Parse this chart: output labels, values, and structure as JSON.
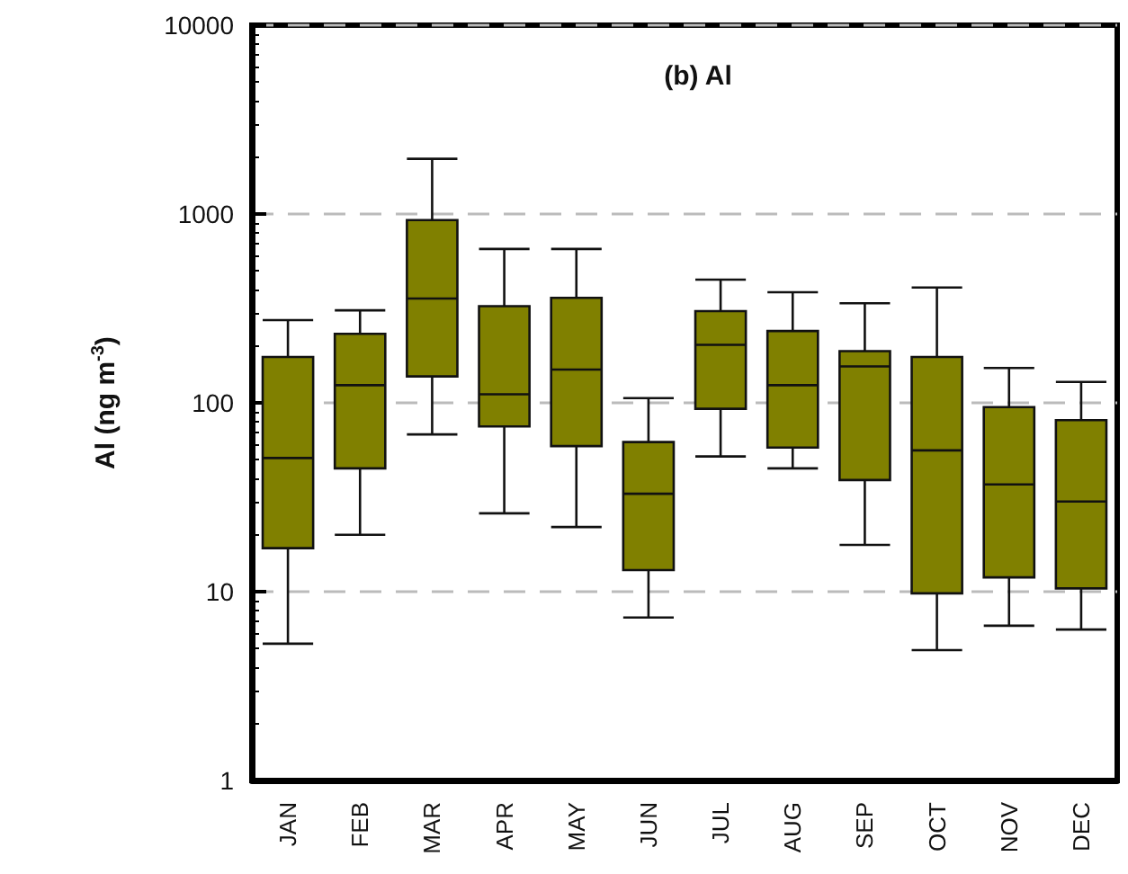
{
  "chart_data": {
    "type": "box",
    "title": "(b) Al",
    "ylabel": "Al (ng m$^{-3}$)",
    "categories": [
      "JAN",
      "FEB",
      "MAR",
      "APR",
      "MAY",
      "JUN",
      "JUL",
      "AUG",
      "SEP",
      "OCT",
      "NOV",
      "DEC"
    ],
    "color": "#808000",
    "log": "y",
    "ylim": [
      1,
      10000
    ],
    "yticks": [
      1,
      10,
      100,
      1000,
      10000
    ],
    "grid": "y",
    "boxes": [
      {
        "low": 5.3,
        "q1": 17,
        "median": 51,
        "q3": 175,
        "high": 274
      },
      {
        "low": 20,
        "q1": 45,
        "median": 124,
        "q3": 232,
        "high": 309
      },
      {
        "low": 68,
        "q1": 138,
        "median": 357,
        "q3": 929,
        "high": 1960
      },
      {
        "low": 26,
        "q1": 75,
        "median": 111,
        "q3": 325,
        "high": 653
      },
      {
        "low": 22,
        "q1": 59,
        "median": 150,
        "q3": 360,
        "high": 653
      },
      {
        "low": 7.3,
        "q1": 13,
        "median": 33,
        "q3": 62,
        "high": 106
      },
      {
        "low": 52,
        "q1": 93,
        "median": 203,
        "q3": 306,
        "high": 449
      },
      {
        "low": 45,
        "q1": 58,
        "median": 124,
        "q3": 240,
        "high": 385
      },
      {
        "low": 17.7,
        "q1": 39,
        "median": 156,
        "q3": 188,
        "high": 337
      },
      {
        "low": 4.9,
        "q1": 9.8,
        "median": 56,
        "q3": 175,
        "high": 408
      },
      {
        "low": 6.6,
        "q1": 11.9,
        "median": 37,
        "q3": 95,
        "high": 153
      },
      {
        "low": 6.3,
        "q1": 10.4,
        "median": 30,
        "q3": 81,
        "high": 129
      }
    ]
  }
}
